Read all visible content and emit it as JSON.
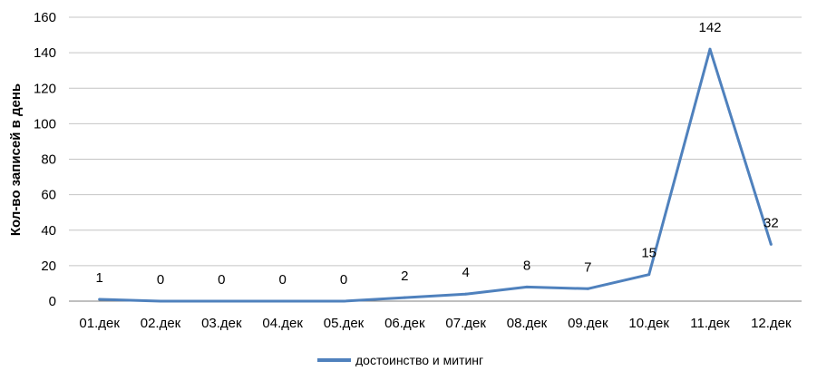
{
  "chart_data": {
    "type": "line",
    "title": "",
    "xlabel": "",
    "ylabel": "Кол-во записей в день",
    "ylim": [
      0,
      160
    ],
    "yticks": [
      0,
      20,
      40,
      60,
      80,
      100,
      120,
      140,
      160
    ],
    "grid": "horizontal",
    "legend_position": "bottom",
    "categories": [
      "01.дек",
      "02.дек",
      "03.дек",
      "04.дек",
      "05.дек",
      "06.дек",
      "07.дек",
      "08.дек",
      "09.дек",
      "10.дек",
      "11.дек",
      "12.дек"
    ],
    "series": [
      {
        "name": "достоинство и митинг",
        "color": "#4f81bd",
        "values": [
          1,
          0,
          0,
          0,
          0,
          2,
          4,
          8,
          7,
          15,
          142,
          32
        ],
        "data_labels": [
          "1",
          "0",
          "0",
          "0",
          "0",
          "2",
          "4",
          "8",
          "7",
          "15",
          "142",
          "32"
        ]
      }
    ]
  }
}
